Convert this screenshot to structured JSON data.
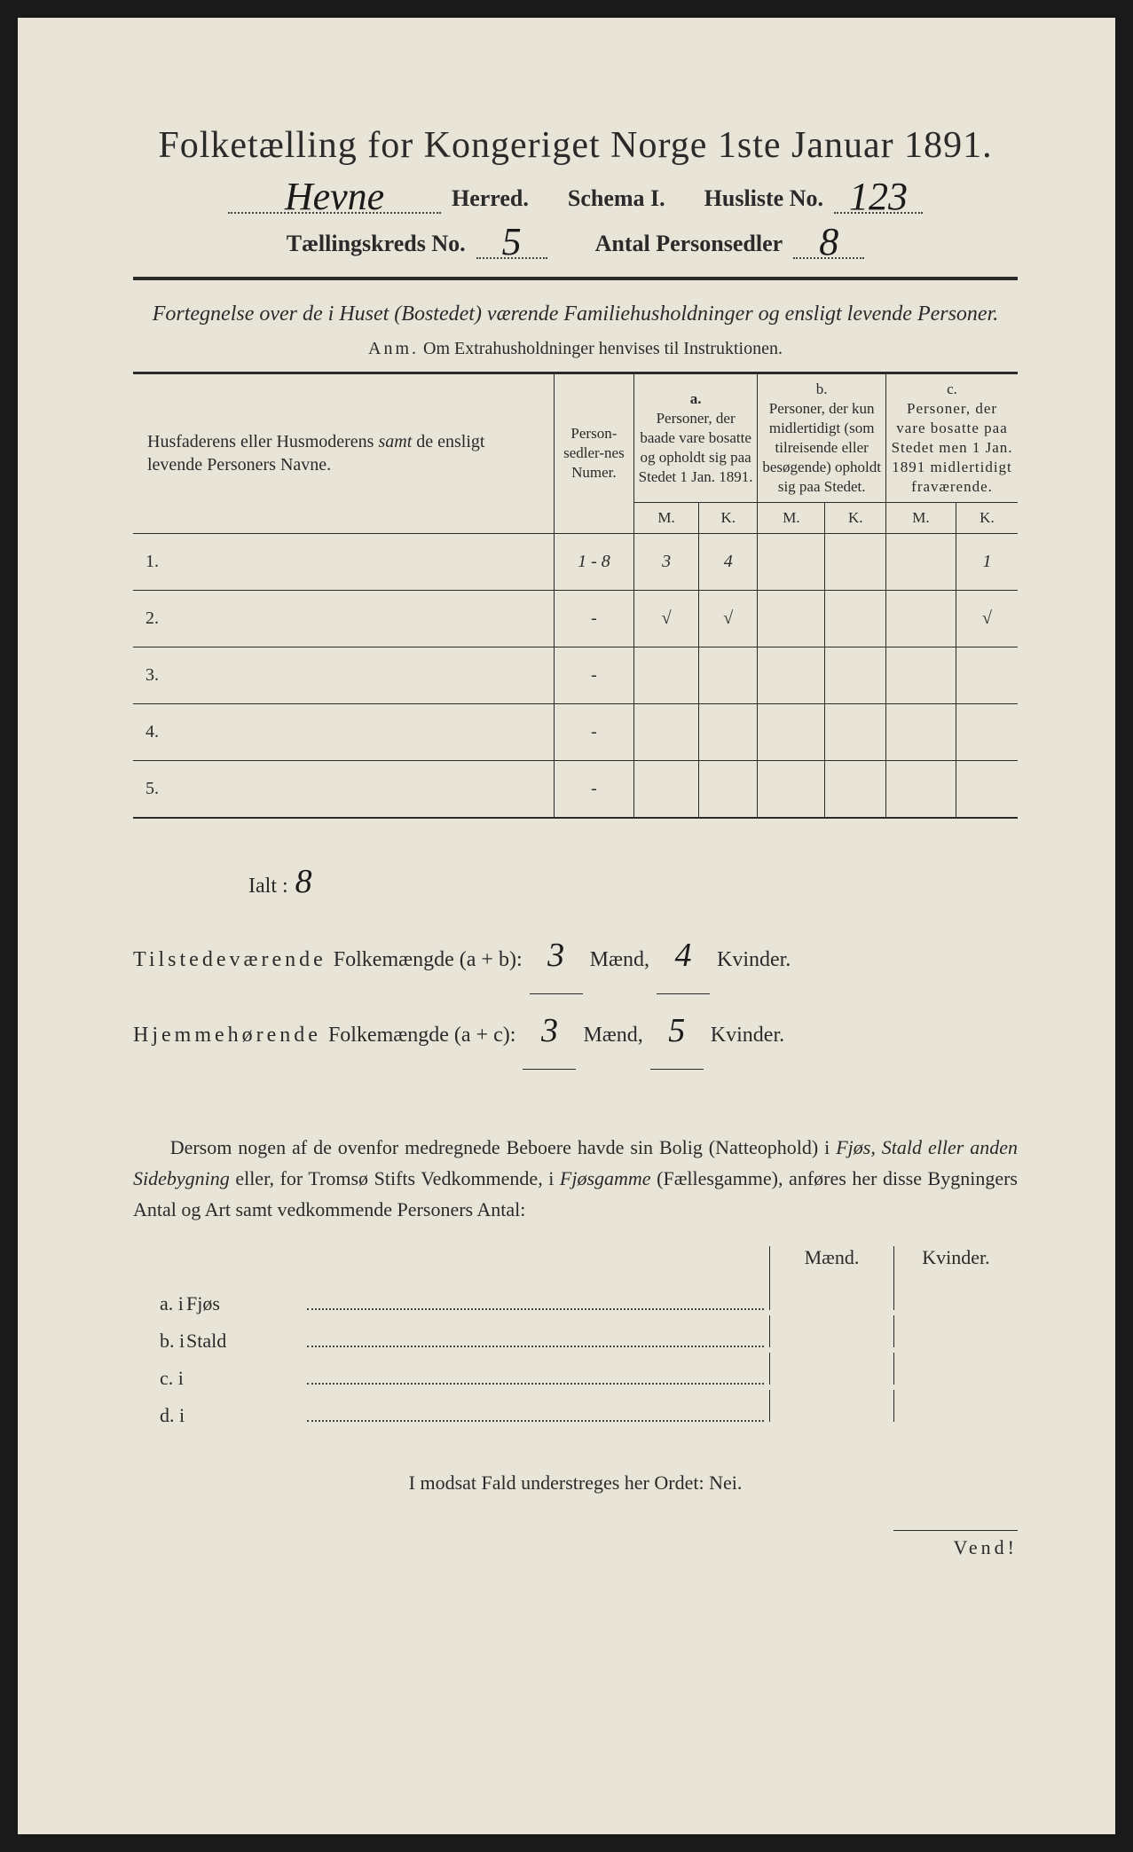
{
  "title": "Folketælling for Kongeriget Norge 1ste Januar 1891.",
  "header": {
    "herred_value": "Hevne",
    "herred_label": "Herred.",
    "schema_label": "Schema I.",
    "husliste_label": "Husliste No.",
    "husliste_value": "123",
    "kreds_label": "Tællingskreds No.",
    "kreds_value": "5",
    "antal_label": "Antal Personsedler",
    "antal_value": "8"
  },
  "subtitle": "Fortegnelse over de i Huset (Bostedet) værende Familiehusholdninger og ensligt levende Personer.",
  "anm_label": "Anm.",
  "anm_text": "Om Extrahusholdninger henvises til Instruktionen.",
  "table": {
    "col_names": "Husfaderens eller Husmoderens samt de ensligt levende Personers Navne.",
    "col_numer": "Person-sedler-nes Numer.",
    "col_a_label": "a.",
    "col_a": "Personer, der baade vare bosatte og opholdt sig paa Stedet 1 Jan. 1891.",
    "col_b_label": "b.",
    "col_b": "Personer, der kun midlertidigt (som tilreisende eller besøgende) opholdt sig paa Stedet.",
    "col_c_label": "c.",
    "col_c": "Personer, der vare bosatte paa Stedet men 1 Jan. 1891 midlertidigt fraværende.",
    "m": "M.",
    "k": "K.",
    "rows": [
      {
        "n": "1.",
        "numer": "1 - 8",
        "am": "3",
        "ak": "4",
        "bm": "",
        "bk": "",
        "cm": "",
        "ck": "1"
      },
      {
        "n": "2.",
        "numer": "-",
        "am": "√",
        "ak": "√",
        "bm": "",
        "bk": "",
        "cm": "",
        "ck": "√"
      },
      {
        "n": "3.",
        "numer": "-",
        "am": "",
        "ak": "",
        "bm": "",
        "bk": "",
        "cm": "",
        "ck": ""
      },
      {
        "n": "4.",
        "numer": "-",
        "am": "",
        "ak": "",
        "bm": "",
        "bk": "",
        "cm": "",
        "ck": ""
      },
      {
        "n": "5.",
        "numer": "-",
        "am": "",
        "ak": "",
        "bm": "",
        "bk": "",
        "cm": "",
        "ck": ""
      }
    ]
  },
  "summary": {
    "ialt_label": "Ialt :",
    "ialt_value": "8",
    "line1_label": "Tilstedeværende Folkemængde (a + b):",
    "line1_m": "3",
    "line1_k": "4",
    "line2_label": "Hjemmehørende Folkemængde (a + c):",
    "line2_m": "3",
    "line2_k": "5",
    "maend": "Mænd,",
    "kvinder": "Kvinder."
  },
  "para": "Dersom nogen af de ovenfor medregnede Beboere havde sin Bolig (Natteophold) i Fjøs, Stald eller anden Sidebygning eller, for Tromsø Stifts Vedkommende, i Fjøsgamme (Fællesgamme), anføres her disse Bygningers Antal og Art samt vedkommende Personers Antal:",
  "bottom": {
    "maend": "Mænd.",
    "kvinder": "Kvinder.",
    "rows": [
      {
        "label": "a. i",
        "word": "Fjøs"
      },
      {
        "label": "b. i",
        "word": "Stald"
      },
      {
        "label": "c. i",
        "word": ""
      },
      {
        "label": "d. i",
        "word": ""
      }
    ]
  },
  "nei": "I modsat Fald understreges her Ordet: Nei.",
  "vend": "Vend!"
}
